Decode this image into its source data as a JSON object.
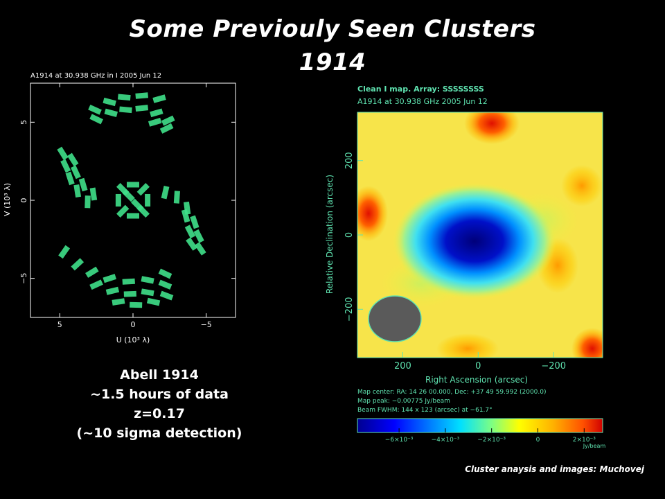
{
  "slide": {
    "title_line1": "Some Previouly Seen Clusters",
    "title_line2": "1914",
    "caption": [
      "Abell 1914",
      "~1.5 hours of data",
      "z=0.17",
      "(~10 sigma detection)"
    ],
    "credit": "Cluster anaysis and images: Muchovej"
  },
  "chart_data": [
    {
      "type": "scatter",
      "title": "A1914 at 30.938 GHz in I   2005 Jun 12",
      "xlabel": "U (10³ λ)",
      "ylabel": "V (10³ λ)",
      "xlim": [
        7,
        -7
      ],
      "ylim": [
        -7.5,
        7.5
      ],
      "xticks": [
        "5",
        "0",
        "−5"
      ],
      "yticks": [
        "5",
        "0",
        "−5"
      ],
      "point_color": "#3fe08a",
      "grid": false,
      "series": [
        {
          "values": [
            {
              "x": 2.6,
              "y": 5.8
            },
            {
              "x": 1.6,
              "y": 6.3
            },
            {
              "x": 0.6,
              "y": 6.6
            },
            {
              "x": -0.6,
              "y": 6.7
            },
            {
              "x": -1.8,
              "y": 6.5
            },
            {
              "x": 2.5,
              "y": 5.2
            },
            {
              "x": 1.5,
              "y": 5.6
            },
            {
              "x": 0.5,
              "y": 5.8
            },
            {
              "x": -0.6,
              "y": 5.9
            },
            {
              "x": -1.6,
              "y": 5.6
            },
            {
              "x": -2.4,
              "y": 5.1
            },
            {
              "x": -2.3,
              "y": 4.6
            },
            {
              "x": -1.5,
              "y": 5.0
            },
            {
              "x": 4.8,
              "y": 3.0
            },
            {
              "x": 4.6,
              "y": 2.2
            },
            {
              "x": 4.3,
              "y": 1.4
            },
            {
              "x": 3.8,
              "y": 0.6
            },
            {
              "x": 3.1,
              "y": -0.1
            },
            {
              "x": 4.1,
              "y": 2.6
            },
            {
              "x": 3.9,
              "y": 1.8
            },
            {
              "x": 3.4,
              "y": 1.0
            },
            {
              "x": 2.7,
              "y": 0.4
            },
            {
              "x": -2.2,
              "y": 0.5
            },
            {
              "x": -3.0,
              "y": 0.2
            },
            {
              "x": -3.7,
              "y": -0.5
            },
            {
              "x": -4.2,
              "y": -1.4
            },
            {
              "x": -4.5,
              "y": -2.3
            },
            {
              "x": -4.6,
              "y": -3.1
            },
            {
              "x": -3.6,
              "y": -1.0
            },
            {
              "x": -3.9,
              "y": -2.0
            },
            {
              "x": -4.0,
              "y": -2.8
            },
            {
              "x": 4.7,
              "y": -3.3
            },
            {
              "x": 3.8,
              "y": -4.1
            },
            {
              "x": 2.8,
              "y": -4.6
            },
            {
              "x": 1.6,
              "y": -5.0
            },
            {
              "x": 0.3,
              "y": -5.2
            },
            {
              "x": -1.0,
              "y": -5.1
            },
            {
              "x": -2.2,
              "y": -4.7
            },
            {
              "x": 2.5,
              "y": -5.4
            },
            {
              "x": 1.4,
              "y": -5.8
            },
            {
              "x": 0.2,
              "y": -6.0
            },
            {
              "x": -1.0,
              "y": -5.9
            },
            {
              "x": -2.2,
              "y": -5.4
            },
            {
              "x": 1.0,
              "y": -6.5
            },
            {
              "x": -0.2,
              "y": -6.7
            },
            {
              "x": -1.4,
              "y": -6.5
            },
            {
              "x": -2.3,
              "y": -6.1
            },
            {
              "x": 0.0,
              "y": 1.0
            },
            {
              "x": 0.7,
              "y": 0.7
            },
            {
              "x": 1.0,
              "y": 0.0
            },
            {
              "x": 0.7,
              "y": -0.7
            },
            {
              "x": 0.0,
              "y": -1.0
            },
            {
              "x": -0.7,
              "y": -0.7
            },
            {
              "x": -1.0,
              "y": 0.0
            },
            {
              "x": -0.7,
              "y": 0.7
            },
            {
              "x": 0.3,
              "y": 0.3
            },
            {
              "x": -0.3,
              "y": -0.3
            }
          ]
        }
      ]
    },
    {
      "type": "heatmap",
      "title": "Clean I map.  Array:  SSSSSSSS",
      "subtitle": "A1914 at 30.938 GHz 2005 Jun 12",
      "xlabel": "Right Ascension  (arcsec)",
      "ylabel": "Relative Declination  (arcsec)",
      "xlim": [
        320,
        -330
      ],
      "ylim": [
        -330,
        330
      ],
      "xticks": [
        "200",
        "0",
        "−200"
      ],
      "yticks": [
        "200",
        "0",
        "−200"
      ],
      "decrement_peak": {
        "ra": 0,
        "dec": -30,
        "value": -0.00775
      },
      "beam_fwhm": "144 x 123 (arcsec) at −61.7°",
      "info_lines": [
        "Map center:  RA: 14 26 00.000,  Dec: +37 49 59.992 (2000.0)",
        "Map peak: −0.00775 Jy/beam",
        "Beam FWHM:  144 x 123 (arcsec) at −61.7°"
      ],
      "colorbar": {
        "ticks": [
          "−6×10⁻³",
          "−4×10⁻³",
          "−2×10⁻³",
          "0",
          "2×10⁻³"
        ],
        "tick_values": [
          -0.006,
          -0.004,
          -0.002,
          0,
          0.002
        ],
        "range": [
          -0.0078,
          0.0028
        ],
        "unit": "Jy/beam"
      },
      "label_color": "#5fe3b0"
    }
  ]
}
